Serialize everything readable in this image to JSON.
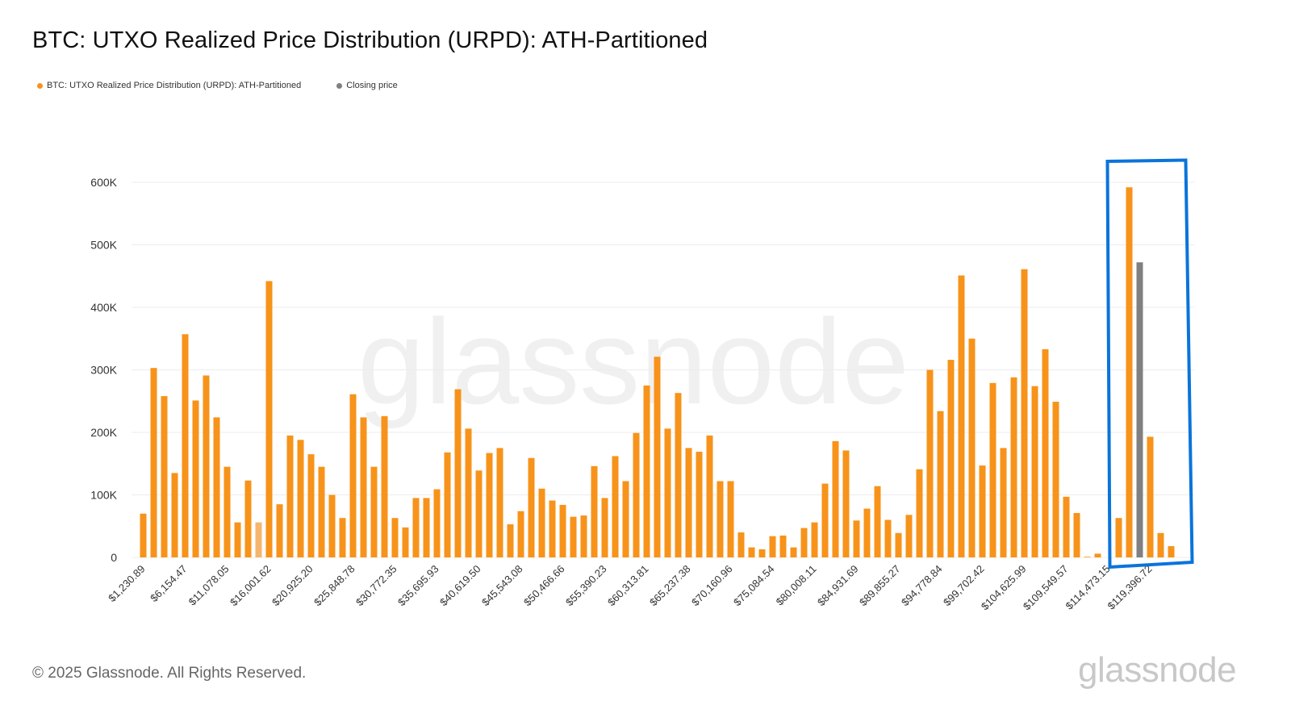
{
  "header": {
    "title": "BTC: UTXO Realized Price Distribution (URPD): ATH-Partitioned"
  },
  "legend": [
    {
      "label": "BTC: UTXO Realized Price Distribution (URPD): ATH-Partitioned",
      "color": "#f7931a"
    },
    {
      "label": "Closing price",
      "color": "#808080"
    }
  ],
  "footer": {
    "copyright": "© 2025 Glassnode. All Rights Reserved.",
    "brand": "glassnode",
    "watermark": "glassnode"
  },
  "colors": {
    "bar": "#f7931a",
    "bar_light": "#f6b56e",
    "closing": "#808080",
    "highlight_box": "#0a74da",
    "grid": "#ececec"
  },
  "chart_data": {
    "type": "bar",
    "title": "BTC: UTXO Realized Price Distribution (URPD): ATH-Partitioned",
    "ylim": [
      0,
      600000
    ],
    "y_ticks": [
      {
        "value": 0,
        "label": "0"
      },
      {
        "value": 100000,
        "label": "100K"
      },
      {
        "value": 200000,
        "label": "200K"
      },
      {
        "value": 300000,
        "label": "300K"
      },
      {
        "value": 400000,
        "label": "400K"
      },
      {
        "value": 500000,
        "label": "500K"
      },
      {
        "value": 600000,
        "label": "600K"
      }
    ],
    "x_tick_labels": [
      "$1,230.89",
      "$6,154.47",
      "$11,078.05",
      "$16,001.62",
      "$20,925.20",
      "$25,848.78",
      "$30,772.35",
      "$35,695.93",
      "$40,619.50",
      "$45,543.08",
      "$50,466.66",
      "$55,390.23",
      "$60,313.81",
      "$65,237.38",
      "$70,160.96",
      "$75,084.54",
      "$80,008.11",
      "$84,931.69",
      "$89,855.27",
      "$94,778.84",
      "$99,702.42",
      "$104,625.99",
      "$109,549.57",
      "$114,473.15",
      "$119,396.72"
    ],
    "x_tick_every": 4,
    "grid": true,
    "legend_position": "top-left",
    "series": [
      {
        "name": "BTC: UTXO Realized Price Distribution (URPD): ATH-Partitioned",
        "values": [
          70000,
          303000,
          258000,
          135000,
          357000,
          251000,
          291000,
          224000,
          145000,
          56000,
          123000,
          56000,
          442000,
          85000,
          195000,
          188000,
          165000,
          145000,
          100000,
          63000,
          261000,
          224000,
          145000,
          226000,
          63000,
          48000,
          95000,
          95000,
          109000,
          168000,
          269000,
          206000,
          139000,
          167000,
          175000,
          53000,
          74000,
          159000,
          110000,
          91000,
          84000,
          65000,
          67000,
          146000,
          95000,
          162000,
          122000,
          199000,
          275000,
          321000,
          206000,
          263000,
          175000,
          169000,
          195000,
          122000,
          122000,
          40000,
          16000,
          13000,
          34000,
          35000,
          16000,
          47000,
          56000,
          118000,
          186000,
          171000,
          59000,
          78000,
          114000,
          60000,
          39000,
          68000,
          141000,
          300000,
          234000,
          316000,
          451000,
          350000,
          147000,
          279000,
          175000,
          288000,
          461000,
          274000,
          333000,
          249000,
          97000,
          71000,
          1000,
          6000,
          0,
          63000,
          592000,
          0,
          193000,
          39000,
          18000
        ]
      },
      {
        "name": "Closing price",
        "values": [
          0,
          0,
          0,
          0,
          0,
          0,
          0,
          0,
          0,
          0,
          0,
          0,
          0,
          0,
          0,
          0,
          0,
          0,
          0,
          0,
          0,
          0,
          0,
          0,
          0,
          0,
          0,
          0,
          0,
          0,
          0,
          0,
          0,
          0,
          0,
          0,
          0,
          0,
          0,
          0,
          0,
          0,
          0,
          0,
          0,
          0,
          0,
          0,
          0,
          0,
          0,
          0,
          0,
          0,
          0,
          0,
          0,
          0,
          0,
          0,
          0,
          0,
          0,
          0,
          0,
          0,
          0,
          0,
          0,
          0,
          0,
          0,
          0,
          0,
          0,
          0,
          0,
          0,
          0,
          0,
          0,
          0,
          0,
          0,
          0,
          0,
          0,
          0,
          0,
          0,
          0,
          0,
          0,
          0,
          0,
          472000,
          0,
          0,
          0
        ]
      }
    ],
    "highlight_from_bar_index": 92
  }
}
